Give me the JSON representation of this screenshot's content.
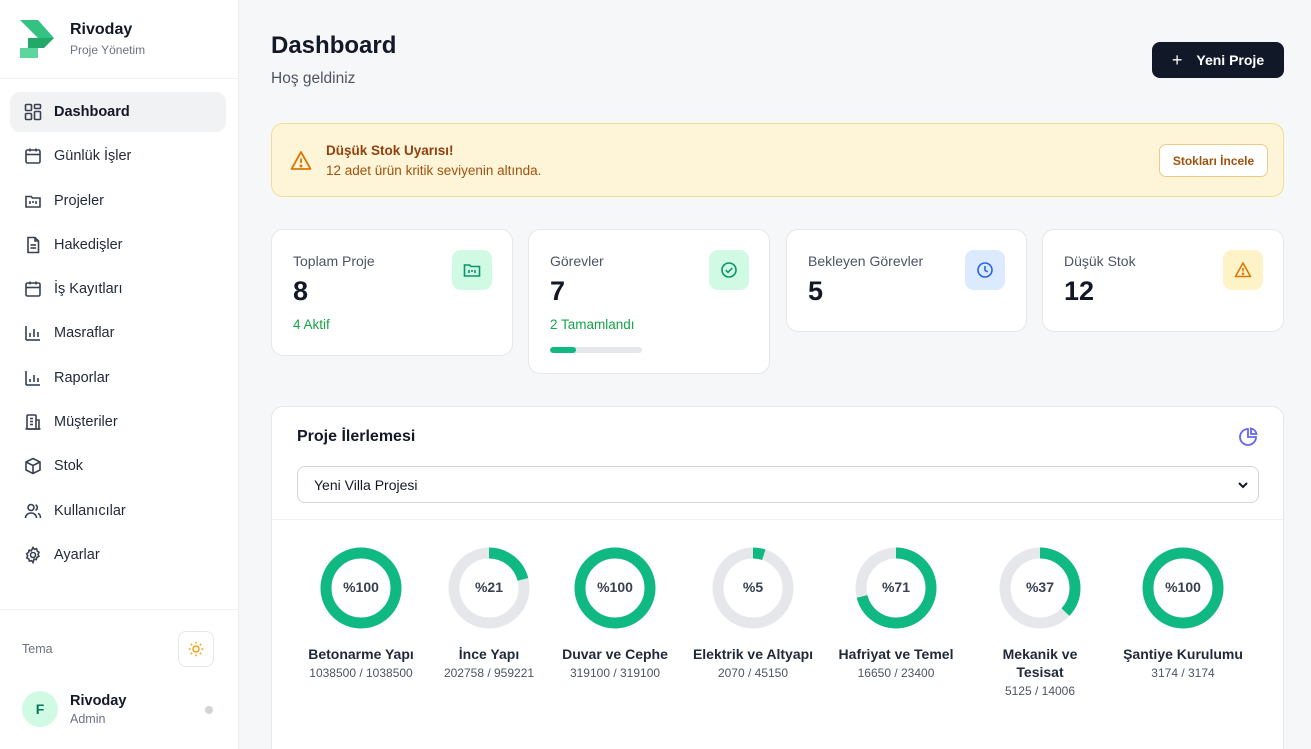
{
  "brand": {
    "name": "Rivoday",
    "subtitle": "Proje Yönetim"
  },
  "sidebar": {
    "items": [
      {
        "label": "Dashboard",
        "icon": "dashboard-grid-icon",
        "active": true
      },
      {
        "label": "Günlük İşler",
        "icon": "calendar-icon"
      },
      {
        "label": "Projeler",
        "icon": "folder-icon"
      },
      {
        "label": "Hakedişler",
        "icon": "document-icon"
      },
      {
        "label": "İş Kayıtları",
        "icon": "calendar-icon"
      },
      {
        "label": "Masraflar",
        "icon": "bar-chart-icon"
      },
      {
        "label": "Raporlar",
        "icon": "bar-chart-icon"
      },
      {
        "label": "Müşteriler",
        "icon": "building-icon"
      },
      {
        "label": "Stok",
        "icon": "box-icon"
      },
      {
        "label": "Kullanıcılar",
        "icon": "users-icon"
      },
      {
        "label": "Ayarlar",
        "icon": "gear-icon"
      }
    ]
  },
  "theme": {
    "label": "Tema",
    "icon": "sun-icon"
  },
  "user": {
    "initial": "F",
    "name": "Rivoday",
    "role": "Admin"
  },
  "header": {
    "title": "Dashboard",
    "subtitle": "Hoş geldiniz",
    "new_button": "Yeni Proje"
  },
  "alert": {
    "title": "Düşük Stok Uyarısı!",
    "text": "12 adet ürün kritik seviyenin altında.",
    "button": "Stokları İncele"
  },
  "stats": [
    {
      "label": "Toplam Proje",
      "value": "8",
      "sub": "4 Aktif",
      "icon": "folder-icon",
      "icon_bg": "#d1fae5",
      "icon_color": "#059669"
    },
    {
      "label": "Görevler",
      "value": "7",
      "sub": "2 Tamamlandı",
      "progress": 0.2857,
      "icon": "check-circle-icon",
      "icon_bg": "#d1fae5",
      "icon_color": "#059669"
    },
    {
      "label": "Bekleyen Görevler",
      "value": "5",
      "icon": "clock-icon",
      "icon_bg": "#dbeafe",
      "icon_color": "#2563eb"
    },
    {
      "label": "Düşük Stok",
      "value": "12",
      "icon": "warning-icon",
      "icon_bg": "#fef3c7",
      "icon_color": "#d97706"
    }
  ],
  "progress_panel": {
    "title": "Proje İlerlemesi",
    "icon": "pie-chart-icon",
    "selected_project": "Yeni Villa Projesi",
    "items": [
      {
        "name": "Betonarme Yapı",
        "pct": 100,
        "pct_label": "%100",
        "values": "1038500 / 1038500"
      },
      {
        "name": "İnce Yapı",
        "pct": 21,
        "pct_label": "%21",
        "values": "202758 / 959221"
      },
      {
        "name": "Duvar ve Cephe",
        "pct": 100,
        "pct_label": "%100",
        "values": "319100 / 319100"
      },
      {
        "name": "Elektrik ve Altyapı",
        "pct": 5,
        "pct_label": "%5",
        "values": "2070 / 45150"
      },
      {
        "name": "Hafriyat ve Temel",
        "pct": 71,
        "pct_label": "%71",
        "values": "16650 / 23400"
      },
      {
        "name": "Mekanik ve Tesisat",
        "pct": 37,
        "pct_label": "%37",
        "values": "5125 / 14006"
      },
      {
        "name": "Şantiye Kurulumu",
        "pct": 100,
        "pct_label": "%100",
        "values": "3174 / 3174"
      }
    ],
    "ring_color": "#10b981",
    "track_color": "#e5e7eb"
  }
}
